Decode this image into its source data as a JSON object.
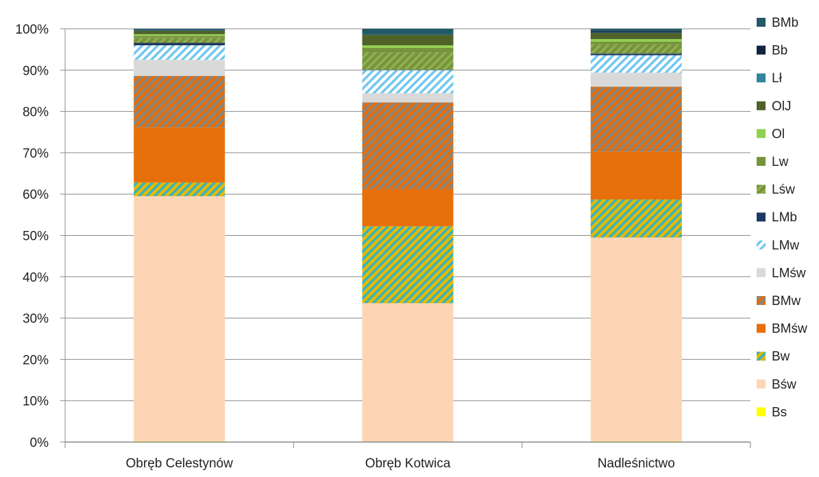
{
  "chart_data": {
    "type": "bar",
    "stacked": true,
    "percent": true,
    "categories": [
      "Obręb Celestynów",
      "Obręb Kotwica",
      "Nadleśnictwo"
    ],
    "ylim": [
      0,
      100
    ],
    "yticks": [
      "0%",
      "10%",
      "20%",
      "30%",
      "40%",
      "50%",
      "60%",
      "70%",
      "80%",
      "90%",
      "100%"
    ],
    "grid": true,
    "legend": "right",
    "series": [
      {
        "name": "Bs",
        "values": [
          0.2,
          0.0,
          0.2
        ],
        "color": "#ffff00",
        "pattern": "solid"
      },
      {
        "name": "Bśw",
        "values": [
          59.3,
          33.6,
          49.3
        ],
        "color": "#fcd5b4",
        "pattern": "solid"
      },
      {
        "name": "Bw",
        "values": [
          3.3,
          18.6,
          9.2
        ],
        "color": "#e6b800",
        "pattern": "stripes",
        "stripe": "#31b3c4"
      },
      {
        "name": "BMśw",
        "values": [
          13.3,
          9.0,
          11.5
        ],
        "color": "#e8700c",
        "pattern": "solid"
      },
      {
        "name": "BMw",
        "values": [
          12.5,
          21.0,
          15.8
        ],
        "color": "#e46c0a",
        "pattern": "stripes",
        "stripe": "#7f8a8a"
      },
      {
        "name": "LMśw",
        "values": [
          3.9,
          2.2,
          3.4
        ],
        "color": "#d9d9d9",
        "pattern": "solid"
      },
      {
        "name": "LMw",
        "values": [
          3.5,
          5.6,
          4.2
        ],
        "color": "#ffffff",
        "pattern": "stripes",
        "stripe": "#6ec6f0"
      },
      {
        "name": "LMb",
        "values": [
          0.6,
          0.1,
          0.4
        ],
        "color": "#1f3864",
        "pattern": "solid"
      },
      {
        "name": "Lśw",
        "values": [
          1.2,
          4.2,
          2.2
        ],
        "color": "#77933c",
        "pattern": "stripes",
        "stripe": "#8fb050"
      },
      {
        "name": "Lw",
        "values": [
          0.5,
          1.1,
          0.7
        ],
        "color": "#77933c",
        "pattern": "solid"
      },
      {
        "name": "Ol",
        "values": [
          0.4,
          0.6,
          0.6
        ],
        "color": "#92d050",
        "pattern": "solid"
      },
      {
        "name": "OlJ",
        "values": [
          0.8,
          2.5,
          1.5
        ],
        "color": "#4f6228",
        "pattern": "solid"
      },
      {
        "name": "Lł",
        "values": [
          0.1,
          0.1,
          0.1
        ],
        "color": "#31859c",
        "pattern": "solid"
      },
      {
        "name": "Bb",
        "values": [
          0.1,
          0.1,
          0.3
        ],
        "color": "#0f243e",
        "pattern": "solid"
      },
      {
        "name": "BMb",
        "values": [
          0.3,
          1.3,
          0.6
        ],
        "color": "#215967",
        "pattern": "solid"
      }
    ]
  }
}
